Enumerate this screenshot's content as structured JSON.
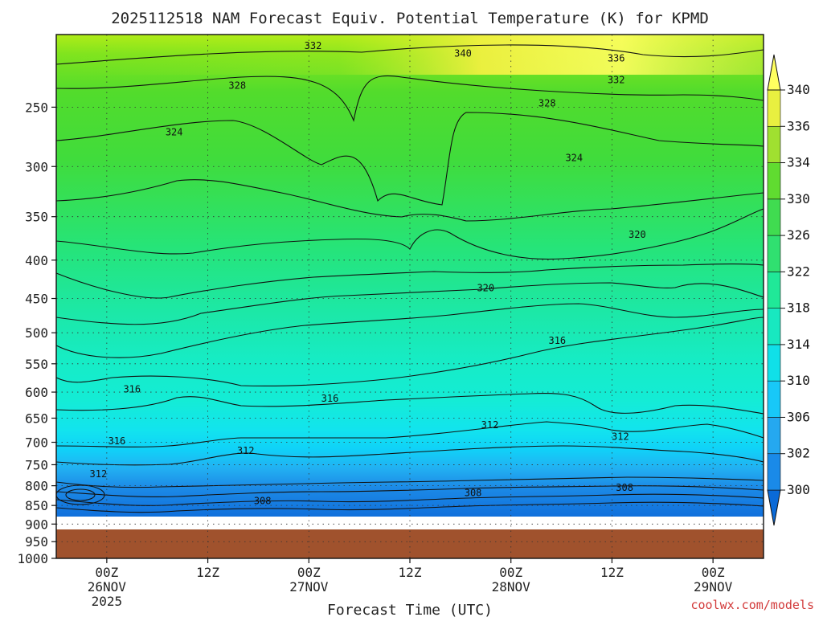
{
  "chart_data": {
    "type": "heatmap",
    "title": "2025112518 NAM Forecast Equiv. Potential Temperature (K) for KPMD",
    "xlabel": "Forecast Time (UTC)",
    "credit": "coolwx.com/models",
    "y_axis": {
      "scale": "log",
      "reversed": true,
      "range": [
        1000,
        200
      ],
      "ticks": [
        "250",
        "300",
        "350",
        "400",
        "450",
        "500",
        "550",
        "600",
        "650",
        "700",
        "750",
        "800",
        "850",
        "900",
        "950",
        "1000"
      ]
    },
    "x_axis": {
      "range": [
        "2025-11-25T18Z",
        "2025-11-29T06Z"
      ],
      "ticks": [
        {
          "hours": 6,
          "line1": "00Z",
          "line2": "26NOV",
          "line3": "2025"
        },
        {
          "hours": 18,
          "line1": "12Z",
          "line2": "",
          "line3": ""
        },
        {
          "hours": 30,
          "line1": "00Z",
          "line2": "27NOV",
          "line3": ""
        },
        {
          "hours": 42,
          "line1": "12Z",
          "line2": "",
          "line3": ""
        },
        {
          "hours": 54,
          "line1": "00Z",
          "line2": "28NOV",
          "line3": ""
        },
        {
          "hours": 66,
          "line1": "12Z",
          "line2": "",
          "line3": ""
        },
        {
          "hours": 78,
          "line1": "00Z",
          "line2": "29NOV",
          "line3": ""
        }
      ]
    },
    "grid": true,
    "terrain_below_hpa": 915,
    "colorbar": {
      "placement": "right",
      "levels": [
        300,
        302,
        306,
        310,
        314,
        318,
        322,
        326,
        330,
        334,
        336,
        340
      ],
      "labels": [
        "340",
        "336",
        "334",
        "330",
        "326",
        "322",
        "318",
        "314",
        "310",
        "306",
        "302",
        "300"
      ],
      "colors": [
        "#0a6ad8",
        "#1a8ae8",
        "#25a8f0",
        "#18c8f8",
        "#10e0e8",
        "#18e8c0",
        "#20e898",
        "#30e070",
        "#40dc50",
        "#60dc30",
        "#a0e030",
        "#e8f040",
        "#ffff60"
      ]
    },
    "contour_labels": [
      {
        "text": "332",
        "h": 30.5,
        "p": 207
      },
      {
        "text": "340",
        "h": 48.3,
        "p": 212
      },
      {
        "text": "336",
        "h": 66.5,
        "p": 215
      },
      {
        "text": "332",
        "h": 66.5,
        "p": 230
      },
      {
        "text": "328",
        "h": 21.5,
        "p": 234
      },
      {
        "text": "328",
        "h": 58.3,
        "p": 247
      },
      {
        "text": "324",
        "h": 14,
        "p": 270
      },
      {
        "text": "324",
        "h": 61.5,
        "p": 292
      },
      {
        "text": "320",
        "h": 69,
        "p": 370
      },
      {
        "text": "320",
        "h": 51,
        "p": 436
      },
      {
        "text": "316",
        "h": 59.5,
        "p": 512
      },
      {
        "text": "316",
        "h": 9,
        "p": 595
      },
      {
        "text": "316",
        "h": 32.5,
        "p": 612
      },
      {
        "text": "316",
        "h": 7.2,
        "p": 697
      },
      {
        "text": "312",
        "h": 51.5,
        "p": 664
      },
      {
        "text": "312",
        "h": 67,
        "p": 688
      },
      {
        "text": "312",
        "h": 22.5,
        "p": 718
      },
      {
        "text": "312",
        "h": 5,
        "p": 772
      },
      {
        "text": "308",
        "h": 49.5,
        "p": 818
      },
      {
        "text": "308",
        "h": 67.5,
        "p": 805
      },
      {
        "text": "308",
        "h": 24.5,
        "p": 838
      }
    ]
  }
}
